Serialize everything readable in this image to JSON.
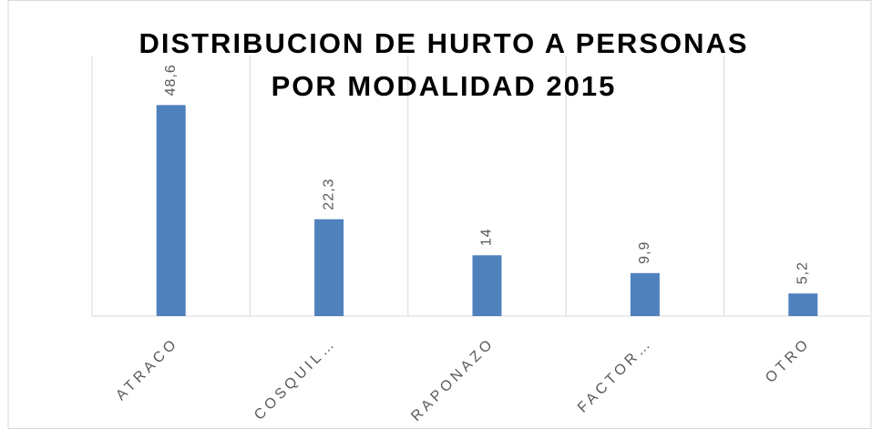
{
  "chart_data": {
    "type": "bar",
    "title": [
      "DISTRIBUCION DE HURTO A PERSONAS",
      "POR MODALIDAD 2015"
    ],
    "categories": [
      "ATRACO",
      "COSQUIL…",
      "RAPONAZO",
      "FACTOR…",
      "OTRO"
    ],
    "values": [
      48.6,
      22.3,
      14,
      9.9,
      5.2
    ],
    "value_labels": [
      "48,6",
      "22,3",
      "14",
      "9,9",
      "5,2"
    ],
    "color": "#4f81bd",
    "ylim": [
      0,
      60
    ]
  }
}
